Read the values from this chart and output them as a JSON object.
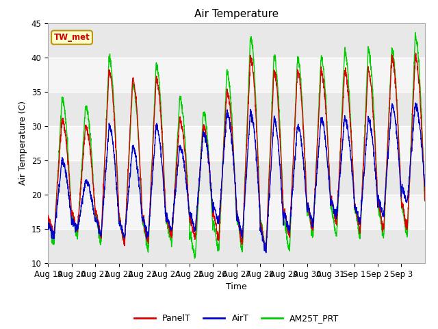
{
  "title": "Air Temperature",
  "ylabel": "Air Temperature (C)",
  "xlabel": "Time",
  "ylim": [
    10,
    45
  ],
  "annotation_text": "TW_met",
  "annotation_bg": "#ffffcc",
  "annotation_border": "#b8960c",
  "annotation_color": "#cc0000",
  "x_tick_labels": [
    "Aug 19",
    "Aug 20",
    "Aug 21",
    "Aug 22",
    "Aug 23",
    "Aug 24",
    "Aug 25",
    "Aug 26",
    "Aug 27",
    "Aug 28",
    "Aug 29",
    "Aug 30",
    "Aug 31",
    "Sep 1",
    "Sep 2",
    "Sep 3"
  ],
  "legend_entries": [
    "PanelT",
    "AirT",
    "AM25T_PRT"
  ],
  "legend_colors": [
    "#dd0000",
    "#0000cc",
    "#00cc00"
  ],
  "line_width": 1.0,
  "band_color_dark": "#e8e8e8",
  "band_color_light": "#f5f5f5",
  "plot_bg": "#ffffff",
  "panelT_mins": [
    14,
    15,
    14,
    13,
    13,
    14,
    14,
    14,
    13,
    12,
    14,
    15,
    16,
    15,
    15,
    15
  ],
  "panelT_maxes": [
    31,
    30,
    38,
    37,
    37,
    31,
    30,
    35,
    40,
    38,
    38,
    38,
    38,
    38,
    40,
    40
  ],
  "airT_mins": [
    14,
    15,
    14,
    14,
    14,
    15,
    15,
    16,
    14,
    12,
    15,
    16,
    17,
    16,
    17,
    19
  ],
  "airT_maxes": [
    25,
    22,
    30,
    27,
    30,
    27,
    29,
    32,
    32,
    31,
    30,
    31,
    31,
    31,
    33,
    33
  ],
  "am25T_mins": [
    13,
    14,
    13,
    13,
    12,
    13,
    11,
    12,
    12,
    12,
    12,
    14,
    14,
    14,
    14,
    14
  ],
  "am25T_maxes": [
    34,
    33,
    40,
    36,
    39,
    34,
    32,
    38,
    43,
    40,
    40,
    40,
    41,
    41,
    41,
    43
  ],
  "n_days": 16,
  "n_per_day": 144,
  "yticks": [
    10,
    15,
    20,
    25,
    30,
    35,
    40,
    45
  ]
}
